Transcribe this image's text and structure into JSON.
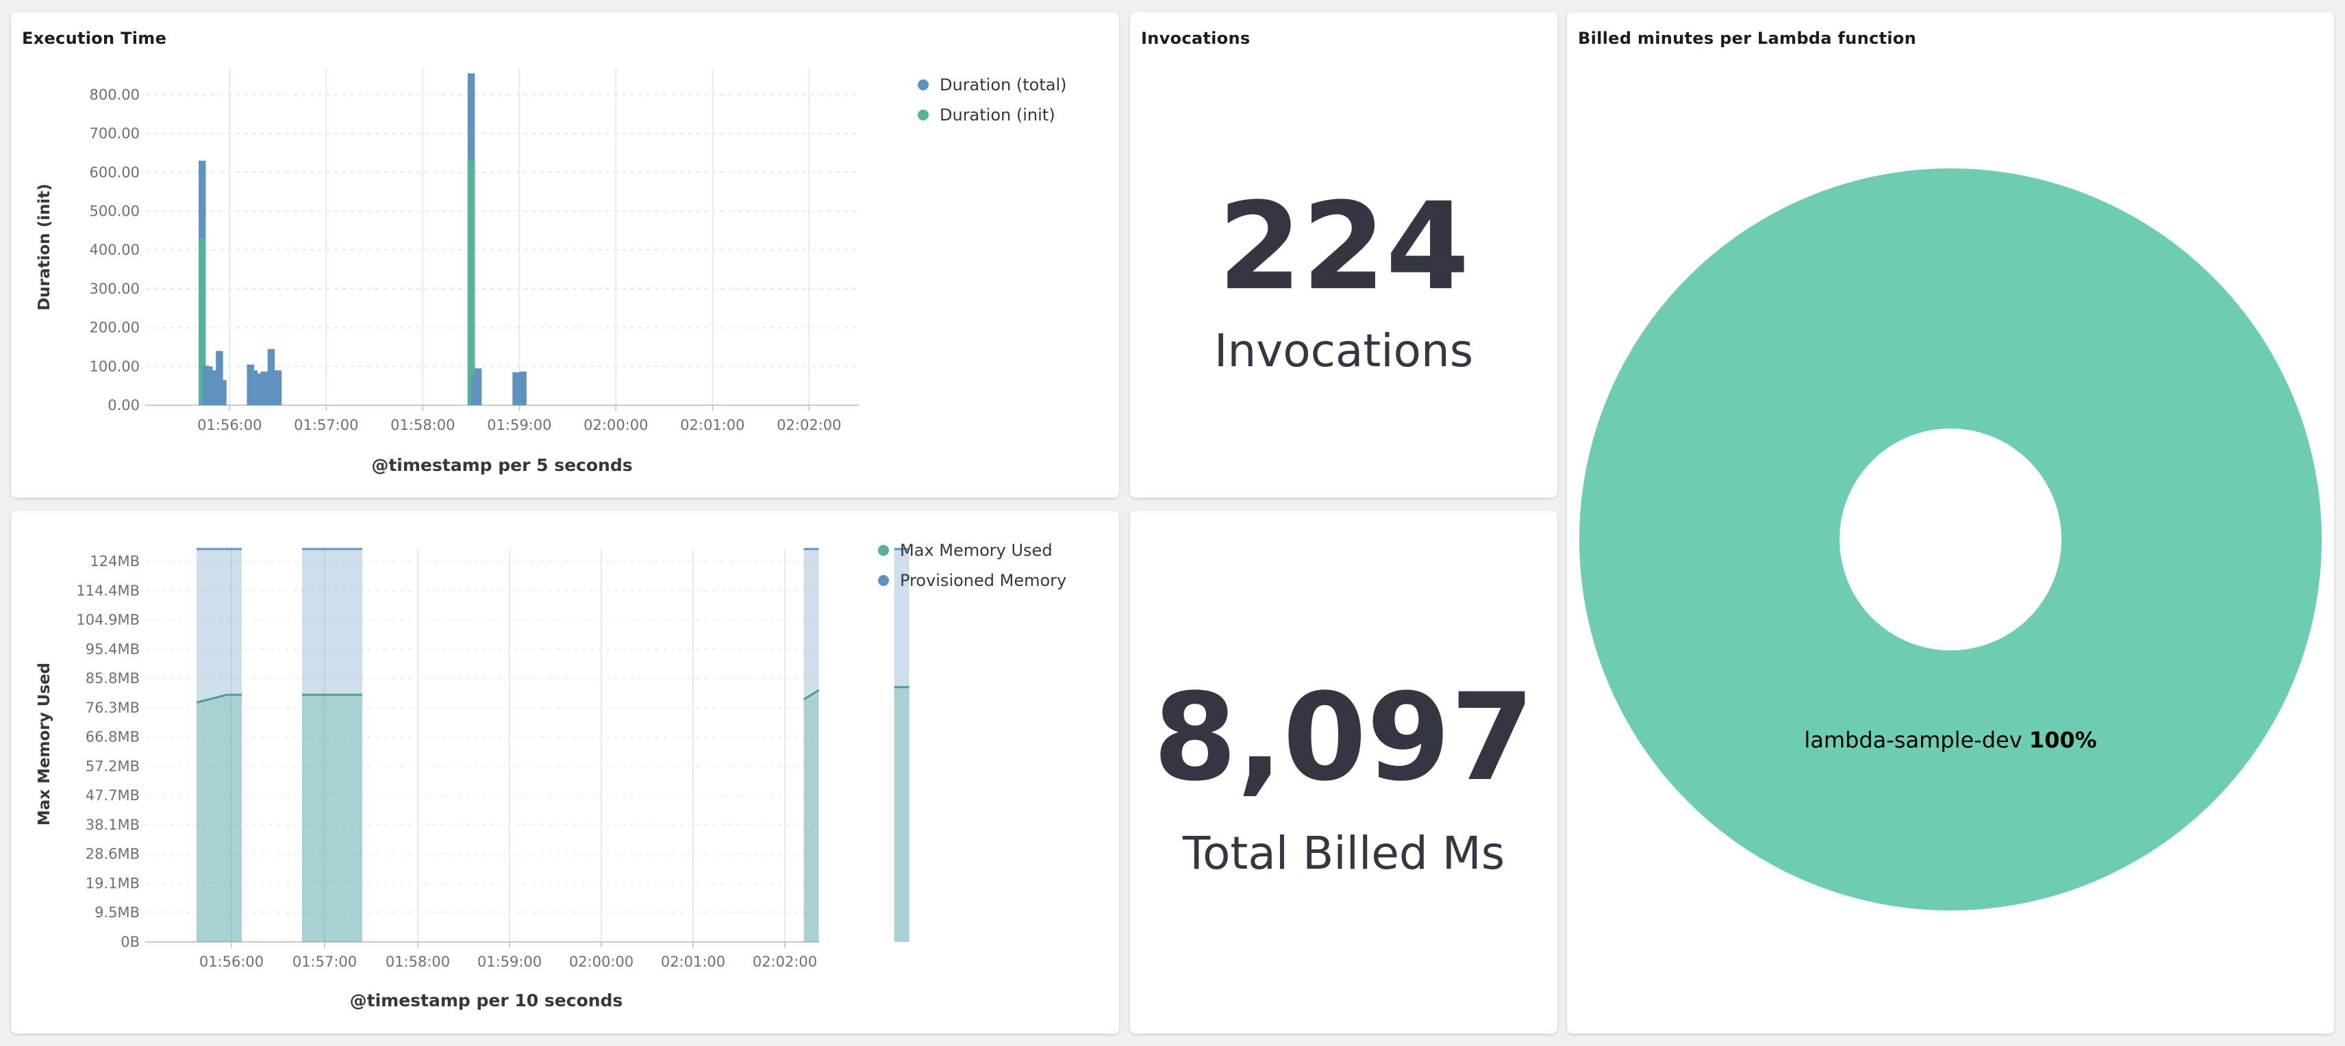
{
  "panels": {
    "execution_time": {
      "title": "Execution Time"
    },
    "memory": {
      "title": ""
    },
    "invocations": {
      "title": "Invocations",
      "value": "224",
      "label": "Invocations"
    },
    "billed_ms": {
      "value": "8,097",
      "label": "Total Billed Ms"
    },
    "billed_minutes": {
      "title": "Billed minutes per Lambda function"
    }
  },
  "chart_data": [
    {
      "type": "bar",
      "stacked": true,
      "xlabel": "@timestamp per 5 seconds",
      "ylabel": "Duration (init)",
      "ylim": [
        0,
        850
      ],
      "grid": true,
      "legend_position": "top-right",
      "x_ticks": [
        "01:56:00",
        "01:57:00",
        "01:58:00",
        "01:59:00",
        "02:00:00",
        "02:01:00",
        "02:02:00"
      ],
      "y_ticks": [
        "0.00",
        "100.00",
        "200.00",
        "300.00",
        "400.00",
        "500.00",
        "600.00",
        "700.00",
        "800.00"
      ],
      "series": [
        {
          "name": "Duration (total)",
          "color": "#6092c0"
        },
        {
          "name": "Duration (init)",
          "color": "#54b399"
        }
      ],
      "x_start_seconds": 0,
      "bars": [
        {
          "x": 45,
          "init": 430,
          "total": 630
        },
        {
          "x": 50,
          "init": 0,
          "total": 102
        },
        {
          "x": 55,
          "init": 0,
          "total": 100
        },
        {
          "x": 60,
          "init": 0,
          "total": 85
        },
        {
          "x": 65,
          "init": 0,
          "total": 90
        },
        {
          "x": 70,
          "init": 0,
          "total": 140
        },
        {
          "x": 75,
          "init": 0,
          "total": 65
        },
        {
          "x": 115,
          "init": 0,
          "total": 105
        },
        {
          "x": 120,
          "init": 0,
          "total": 90
        },
        {
          "x": 125,
          "init": 0,
          "total": 82
        },
        {
          "x": 130,
          "init": 0,
          "total": 82
        },
        {
          "x": 135,
          "init": 0,
          "total": 87
        },
        {
          "x": 140,
          "init": 0,
          "total": 85
        },
        {
          "x": 145,
          "init": 0,
          "total": 145
        },
        {
          "x": 150,
          "init": 0,
          "total": 85
        },
        {
          "x": 155,
          "init": 0,
          "total": 90
        },
        {
          "x": 435,
          "init": 630,
          "total": 855
        },
        {
          "x": 440,
          "init": 0,
          "total": 77
        },
        {
          "x": 445,
          "init": 0,
          "total": 95
        },
        {
          "x": 500,
          "init": 0,
          "total": 85
        },
        {
          "x": 505,
          "init": 0,
          "total": 80
        },
        {
          "x": 510,
          "init": 0,
          "total": 87
        }
      ]
    },
    {
      "type": "area",
      "xlabel": "@timestamp per 10 seconds",
      "ylabel": "Max Memory Used",
      "ylim": [
        0,
        128
      ],
      "grid": true,
      "legend_position": "top-right",
      "x_ticks": [
        "01:56:00",
        "01:57:00",
        "01:58:00",
        "01:59:00",
        "02:00:00",
        "02:01:00",
        "02:02:00"
      ],
      "y_ticks": [
        "0B",
        "9.5MB",
        "19.1MB",
        "28.6MB",
        "38.1MB",
        "47.7MB",
        "57.2MB",
        "66.8MB",
        "76.3MB",
        "85.8MB",
        "95.4MB",
        "104.9MB",
        "114.4MB",
        "124MB"
      ],
      "series": [
        {
          "name": "Max Memory Used",
          "color": "#54b399"
        },
        {
          "name": "Provisioned Memory",
          "color": "#6092c0"
        }
      ],
      "segments": [
        {
          "x": [
            50,
            70,
            80
          ],
          "max_memory": [
            78,
            80.5,
            80.5
          ],
          "provisioned": [
            128,
            128,
            128
          ]
        },
        {
          "x": [
            120,
            130,
            160
          ],
          "max_memory": [
            80.5,
            80.5,
            80.5
          ],
          "provisioned": [
            128,
            128,
            128
          ]
        },
        {
          "x": [
            453,
            463
          ],
          "max_memory": [
            79,
            82
          ],
          "provisioned": [
            128,
            128
          ]
        },
        {
          "x": [
            513,
            523
          ],
          "max_memory": [
            83,
            83
          ],
          "provisioned": [
            128,
            128
          ]
        }
      ]
    },
    {
      "type": "pie",
      "donut": true,
      "slices": [
        {
          "label": "lambda-sample-dev",
          "value": 100,
          "percent": "100%",
          "color": "#6dccb1"
        }
      ]
    }
  ]
}
